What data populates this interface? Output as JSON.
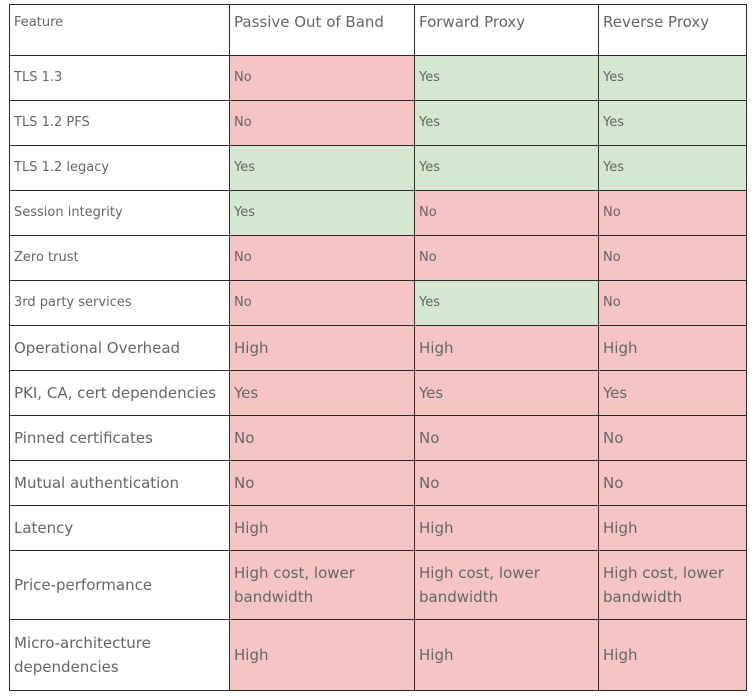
{
  "header": {
    "feature": "Feature",
    "passive": "Passive Out of Band",
    "forward": "Forward Proxy",
    "reverse": "Reverse Proxy"
  },
  "rows": [
    {
      "feature": "TLS 1.3",
      "passive": "No",
      "forward": "Yes",
      "reverse": "Yes"
    },
    {
      "feature": "TLS 1.2 PFS",
      "passive": "No",
      "forward": "Yes",
      "reverse": "Yes"
    },
    {
      "feature": "TLS 1.2 legacy",
      "passive": "Yes",
      "forward": "Yes",
      "reverse": "Yes"
    },
    {
      "feature": "Session integrity",
      "passive": "Yes",
      "forward": "No",
      "reverse": "No"
    },
    {
      "feature": "Zero trust",
      "passive": "No",
      "forward": "No",
      "reverse": "No"
    },
    {
      "feature": "3rd party services",
      "passive": "No",
      "forward": "Yes",
      "reverse": "No"
    },
    {
      "feature": "Operational Overhead",
      "passive": "High",
      "forward": "High",
      "reverse": "High"
    },
    {
      "feature": "PKI, CA, cert dependencies",
      "passive": "Yes",
      "forward": "Yes",
      "reverse": "Yes"
    },
    {
      "feature": "Pinned certificates",
      "passive": "No",
      "forward": "No",
      "reverse": "No"
    },
    {
      "feature": "Mutual authentication",
      "passive": "No",
      "forward": "No",
      "reverse": "No"
    },
    {
      "feature": "Latency",
      "passive": "High",
      "forward": "High",
      "reverse": "High"
    },
    {
      "feature": "Price-performance",
      "passive": "High cost, lower bandwidth",
      "forward": "High cost, lower bandwidth",
      "reverse": "High cost, lower bandwidth"
    },
    {
      "feature": "Micro-architecture dependencies",
      "passive": "High",
      "forward": "High",
      "reverse": "High"
    }
  ],
  "colors": {
    "favorable": "#d5e7d0",
    "unfavorable": "#f5c5c5",
    "border": "#2b2b2b",
    "text": "#666666"
  }
}
